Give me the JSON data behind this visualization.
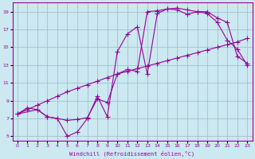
{
  "xlabel": "Windchill (Refroidissement éolien,°C)",
  "line_color": "#990099",
  "bg_color": "#cce8f0",
  "grid_color": "#99bbcc",
  "xlim": [
    -0.5,
    23.5
  ],
  "ylim": [
    4.5,
    20.0
  ],
  "xticks": [
    0,
    1,
    2,
    3,
    4,
    5,
    6,
    7,
    8,
    9,
    10,
    11,
    12,
    13,
    14,
    15,
    16,
    17,
    18,
    19,
    20,
    21,
    22,
    23
  ],
  "yticks": [
    5,
    7,
    9,
    11,
    13,
    15,
    17,
    19
  ],
  "line1_x": [
    0,
    1,
    2,
    3,
    4,
    5,
    6,
    7,
    8,
    9,
    10,
    11,
    12,
    13,
    14,
    15,
    16,
    17,
    18,
    19,
    20,
    21,
    22,
    23
  ],
  "line1_y": [
    7.5,
    8.0,
    8.5,
    9.0,
    9.5,
    10.0,
    10.4,
    10.8,
    11.2,
    11.6,
    12.0,
    12.3,
    12.6,
    12.9,
    13.2,
    13.5,
    13.8,
    14.1,
    14.4,
    14.7,
    15.0,
    15.3,
    15.6,
    16.0
  ],
  "line2_x": [
    0,
    2,
    3,
    4,
    5,
    6,
    7,
    8,
    9,
    10,
    11,
    12,
    13,
    14,
    15,
    16,
    17,
    18,
    19,
    20,
    21,
    22,
    23
  ],
  "line2_y": [
    7.5,
    8.0,
    7.2,
    7.0,
    5.0,
    5.5,
    7.0,
    9.5,
    7.2,
    14.5,
    16.5,
    17.3,
    12.0,
    18.8,
    19.3,
    19.4,
    19.2,
    19.0,
    19.0,
    18.3,
    17.8,
    14.0,
    13.2
  ],
  "line3_x": [
    0,
    1,
    2,
    3,
    4,
    5,
    6,
    7,
    8,
    9,
    10,
    11,
    12,
    13,
    14,
    15,
    16,
    17,
    18,
    19,
    20,
    21,
    22,
    23
  ],
  "line3_y": [
    7.5,
    8.2,
    8.0,
    7.2,
    7.0,
    6.8,
    6.9,
    7.1,
    9.2,
    8.8,
    12.0,
    12.5,
    12.3,
    19.0,
    19.1,
    19.3,
    19.2,
    18.7,
    19.0,
    18.8,
    17.8,
    15.8,
    14.8,
    13.0
  ]
}
